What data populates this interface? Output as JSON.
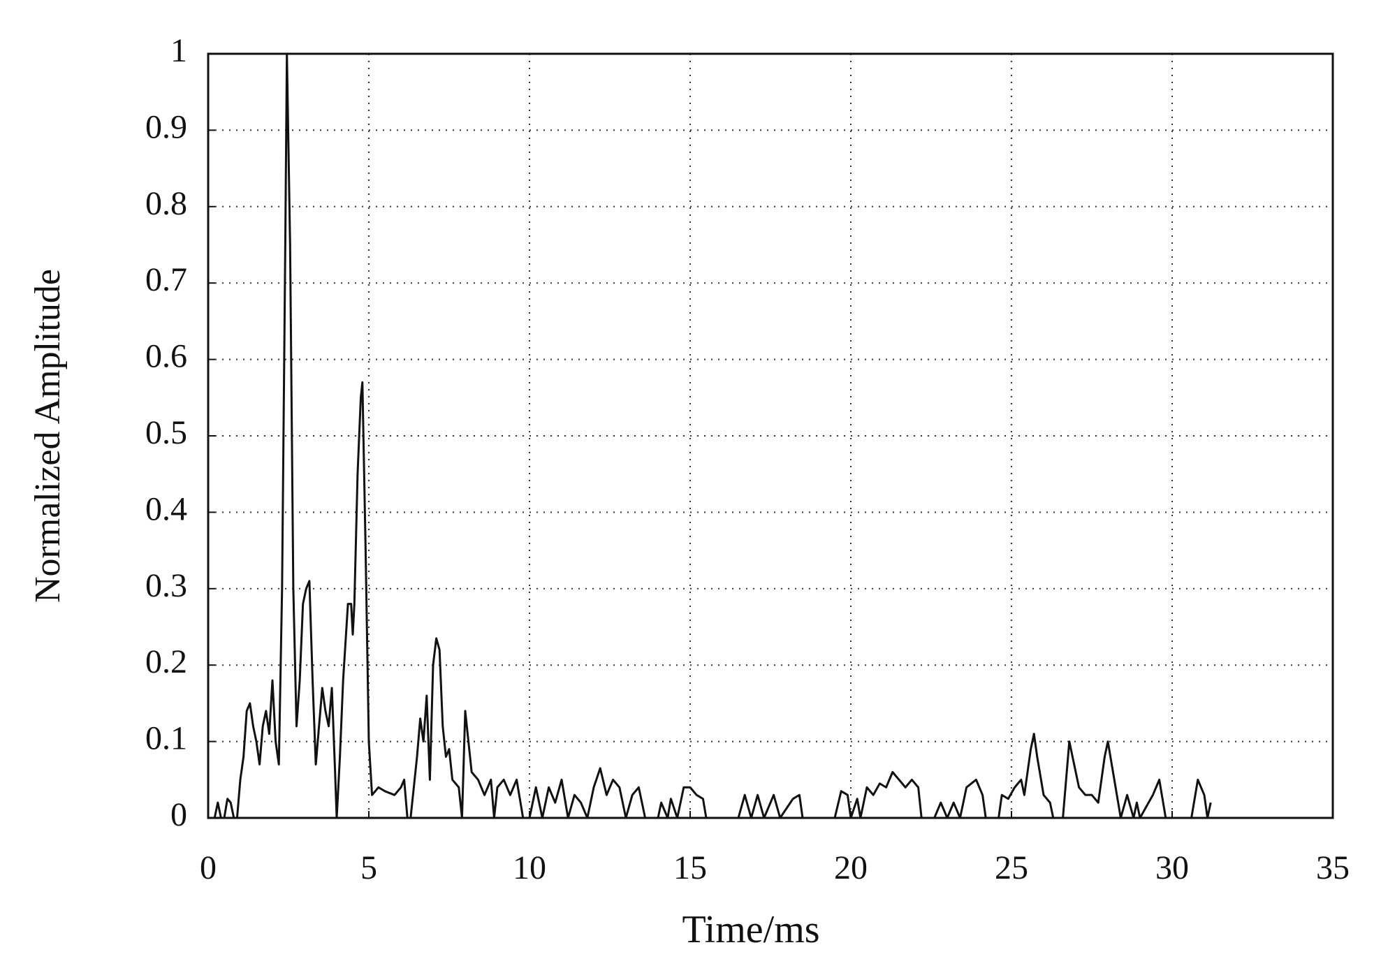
{
  "chart_data": {
    "type": "line",
    "xlabel": "Time/ms",
    "ylabel": "Normalized Amplitude",
    "color": "#111111",
    "x": [
      0,
      0.2,
      0.3,
      0.4,
      0.5,
      0.6,
      0.7,
      0.8,
      0.9,
      1.0,
      1.1,
      1.2,
      1.3,
      1.4,
      1.5,
      1.6,
      1.7,
      1.8,
      1.9,
      2.0,
      2.1,
      2.2,
      2.3,
      2.4,
      2.45,
      2.55,
      2.65,
      2.75,
      2.85,
      2.95,
      3.05,
      3.15,
      3.25,
      3.35,
      3.45,
      3.55,
      3.65,
      3.75,
      3.85,
      3.95,
      4.0,
      4.1,
      4.2,
      4.35,
      4.45,
      4.5,
      4.55,
      4.65,
      4.75,
      4.8,
      4.9,
      5.0,
      5.1,
      5.3,
      5.5,
      5.8,
      6.0,
      6.1,
      6.2,
      6.3,
      6.5,
      6.6,
      6.7,
      6.8,
      6.9,
      7.0,
      7.1,
      7.2,
      7.3,
      7.4,
      7.5,
      7.6,
      7.8,
      7.9,
      8.0,
      8.1,
      8.2,
      8.4,
      8.6,
      8.8,
      8.9,
      9.0,
      9.2,
      9.4,
      9.6,
      9.8,
      10.0,
      10.2,
      10.4,
      10.6,
      10.8,
      11.0,
      11.2,
      11.4,
      11.6,
      11.8,
      12.0,
      12.2,
      12.4,
      12.6,
      12.8,
      13.0,
      13.2,
      13.4,
      13.6,
      14.0,
      14.1,
      14.3,
      14.4,
      14.6,
      14.8,
      15.0,
      15.2,
      15.4,
      15.5,
      16.5,
      16.7,
      16.9,
      17.1,
      17.3,
      17.6,
      17.8,
      18.2,
      18.4,
      18.5,
      19.5,
      19.7,
      19.9,
      20.0,
      20.2,
      20.3,
      20.5,
      20.7,
      20.9,
      21.1,
      21.3,
      21.5,
      21.7,
      21.9,
      22.1,
      22.2,
      22.6,
      22.8,
      23.0,
      23.2,
      23.4,
      23.6,
      23.9,
      24.1,
      24.2,
      24.6,
      24.7,
      24.9,
      25.1,
      25.3,
      25.4,
      25.6,
      25.7,
      25.8,
      26.0,
      26.2,
      26.3,
      26.6,
      26.8,
      26.9,
      27.1,
      27.3,
      27.5,
      27.7,
      27.9,
      28.0,
      28.2,
      28.4,
      28.6,
      28.8,
      28.9,
      29.0,
      29.4,
      29.6,
      29.8,
      30.6,
      30.8,
      31.0,
      31.1,
      31.2
    ],
    "values": [
      0,
      0,
      0.02,
      0,
      0,
      0.025,
      0.02,
      0,
      0,
      0.05,
      0.08,
      0.14,
      0.15,
      0.12,
      0.1,
      0.07,
      0.12,
      0.14,
      0.11,
      0.18,
      0.1,
      0.07,
      0.3,
      0.75,
      1.0,
      0.75,
      0.3,
      0.12,
      0.18,
      0.28,
      0.3,
      0.31,
      0.18,
      0.07,
      0.12,
      0.17,
      0.14,
      0.12,
      0.17,
      0.06,
      0,
      0.08,
      0.18,
      0.28,
      0.28,
      0.24,
      0.28,
      0.45,
      0.55,
      0.57,
      0.35,
      0.1,
      0.03,
      0.04,
      0.035,
      0.03,
      0.04,
      0.05,
      0,
      0,
      0.08,
      0.13,
      0.1,
      0.16,
      0.05,
      0.2,
      0.235,
      0.22,
      0.12,
      0.08,
      0.09,
      0.05,
      0.04,
      0,
      0.14,
      0.1,
      0.06,
      0.05,
      0.03,
      0.05,
      0,
      0.04,
      0.05,
      0.03,
      0.05,
      0,
      0,
      0.04,
      0,
      0.04,
      0.02,
      0.05,
      0,
      0.03,
      0.02,
      0,
      0.04,
      0.065,
      0.03,
      0.05,
      0.04,
      0,
      0.03,
      0.04,
      0,
      0,
      0.02,
      0,
      0.025,
      0,
      0.04,
      0.04,
      0.03,
      0.025,
      0,
      0,
      0.03,
      0,
      0.03,
      0,
      0.03,
      0,
      0.025,
      0.03,
      0,
      0,
      0.035,
      0.03,
      0,
      0.025,
      0,
      0.04,
      0.03,
      0.045,
      0.04,
      0.06,
      0.05,
      0.04,
      0.05,
      0.04,
      0,
      0,
      0.02,
      0,
      0.02,
      0,
      0.04,
      0.05,
      0.03,
      0,
      0,
      0.03,
      0.025,
      0.04,
      0.05,
      0.03,
      0.09,
      0.11,
      0.08,
      0.03,
      0.02,
      0,
      0,
      0.1,
      0.08,
      0.04,
      0.03,
      0.03,
      0.02,
      0.08,
      0.1,
      0.05,
      0,
      0.03,
      0,
      0.02,
      0,
      0.03,
      0.05,
      0,
      0,
      0.05,
      0.03,
      0,
      0.02
    ],
    "xlim": [
      0,
      35
    ],
    "xticks": [
      0,
      5,
      10,
      15,
      20,
      25,
      30,
      35
    ],
    "ylim": [
      0,
      1
    ],
    "yticks": [
      0,
      0.1,
      0.2,
      0.3,
      0.4,
      0.5,
      0.6,
      0.7,
      0.8,
      0.9,
      1
    ],
    "grid": true
  }
}
